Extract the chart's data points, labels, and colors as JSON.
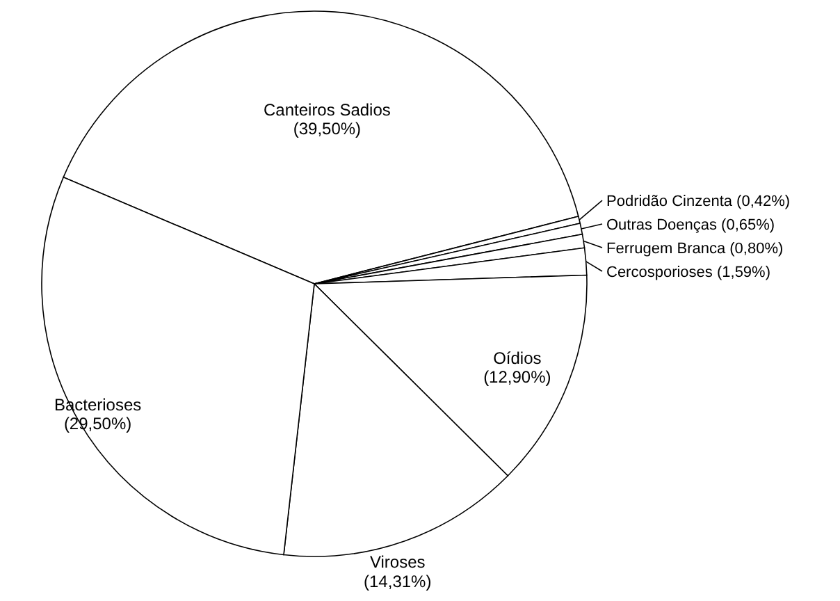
{
  "chart_data": {
    "type": "pie",
    "categories": [
      "Canteiros Sadios",
      "Podridão Cinzenta",
      "Outras Doenças",
      "Ferrugem Branca",
      "Cercosporioses",
      "Oídios",
      "Viroses",
      "Bacterioses"
    ],
    "values": [
      39.5,
      0.42,
      0.65,
      0.8,
      1.59,
      12.9,
      14.31,
      29.5
    ],
    "colors": [
      "#ffffff",
      "#ffffff",
      "#ffffff",
      "#ffffff",
      "#ffffff",
      "#ffffff",
      "#ffffff",
      "#ffffff"
    ],
    "value_labels": [
      "(39,50%)",
      "(0,42%)",
      "(0,65%)",
      "(0,80%)",
      "(1,59%)",
      "(12,90%)",
      "(14,31%)",
      "(29,50%)"
    ]
  }
}
